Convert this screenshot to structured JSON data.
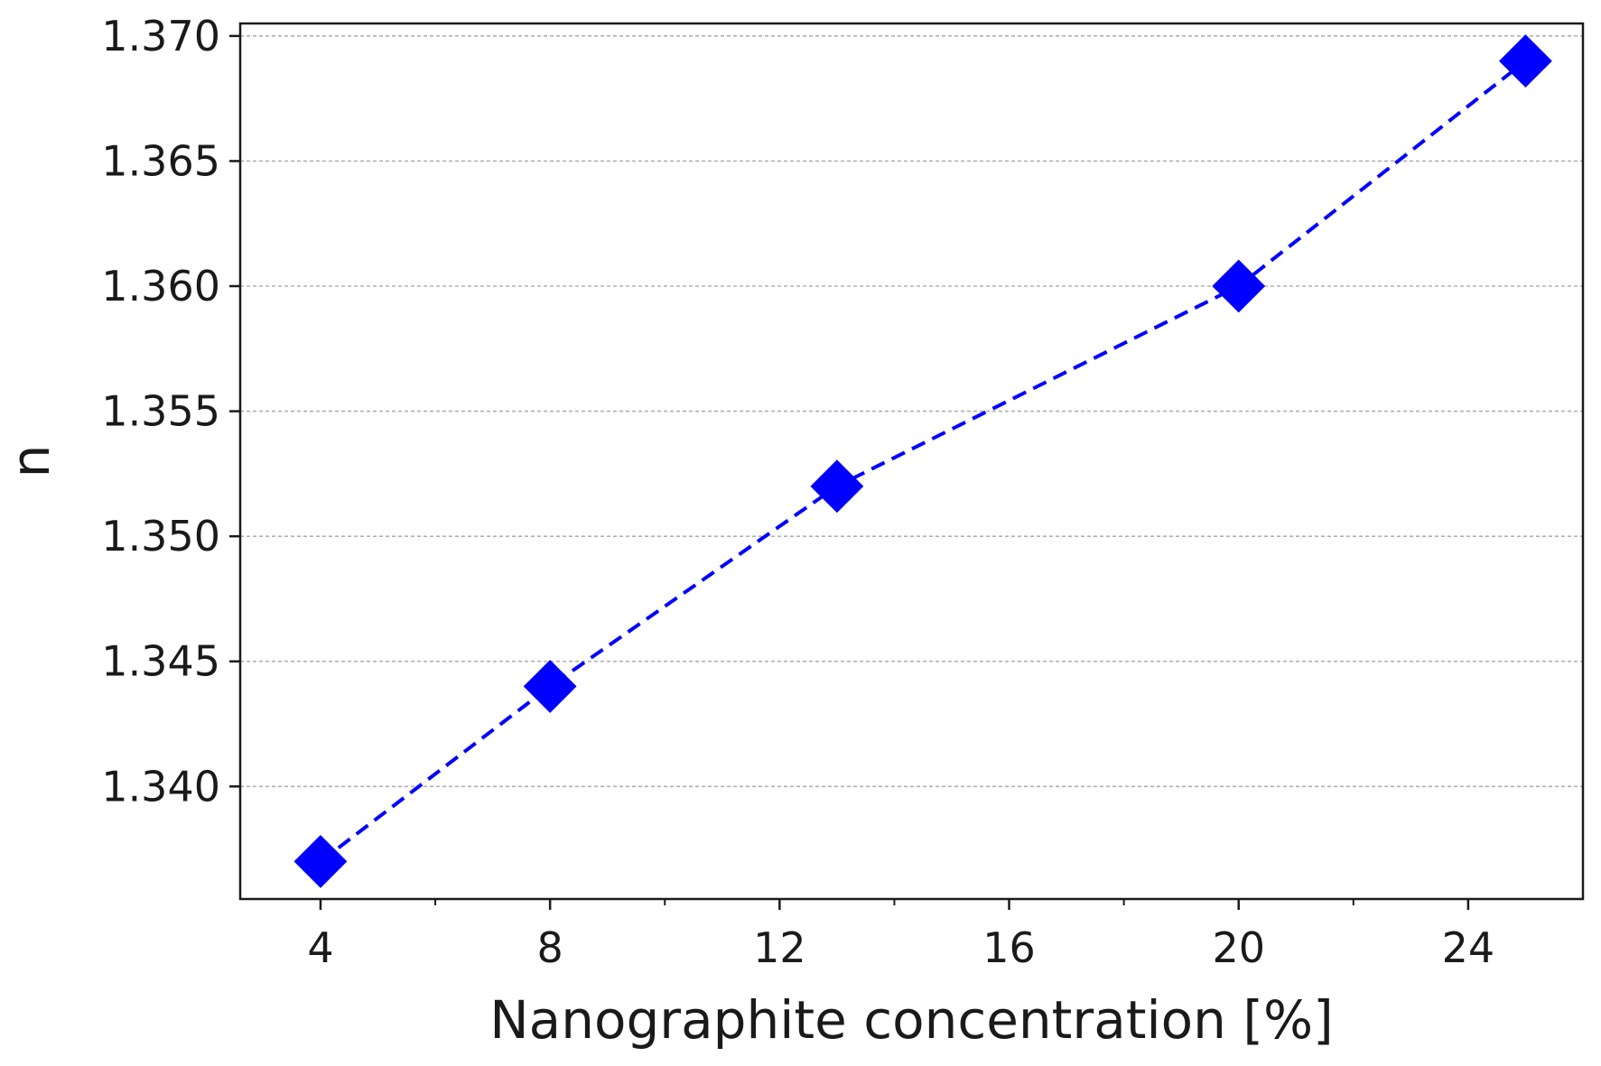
{
  "chart_data": {
    "type": "line",
    "title": "",
    "xlabel": "Nanographite concentration [%]",
    "ylabel": "n",
    "xlim": [
      2.6,
      26.0
    ],
    "ylim": [
      1.3355,
      1.3705
    ],
    "x_major_ticks": [
      4,
      8,
      12,
      16,
      20,
      24
    ],
    "x_tick_labels": [
      "4",
      "8",
      "12",
      "16",
      "20",
      "24"
    ],
    "x_minor_ticks": [
      6,
      10,
      14,
      18,
      22
    ],
    "y_ticks": [
      1.34,
      1.345,
      1.35,
      1.355,
      1.36,
      1.365,
      1.37
    ],
    "y_tick_labels": [
      "1.340",
      "1.345",
      "1.350",
      "1.355",
      "1.360",
      "1.365",
      "1.370"
    ],
    "grid": {
      "y": true,
      "x": false,
      "style": "dashed"
    },
    "legend": "none",
    "series": [
      {
        "x": [
          4,
          8,
          13,
          20,
          25
        ],
        "y": [
          1.337,
          1.344,
          1.352,
          1.36,
          1.369
        ],
        "marker": "diamond",
        "line_style": "dashed",
        "color": "#0000ff"
      }
    ]
  },
  "colors": {
    "series": "#0000ff",
    "grid": "#b0b0b0",
    "axis": "#1a1a1a",
    "text": "#1a1a1a"
  }
}
